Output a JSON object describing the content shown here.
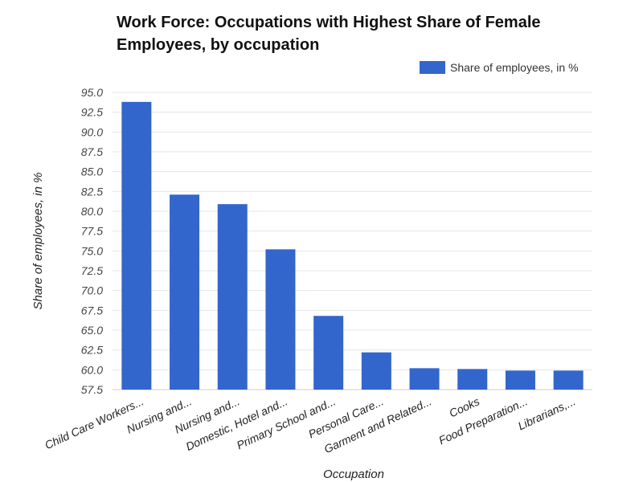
{
  "chart_data": {
    "type": "bar",
    "title": "Work Force: Occupations with Highest Share of Female Employees, by occupation",
    "xlabel": "Occupation",
    "ylabel": "Share of employees, in %",
    "legend": {
      "position": "top-right",
      "entries": [
        "Share of employees, in %"
      ]
    },
    "grid": true,
    "ylim": [
      57.5,
      95.0
    ],
    "yticks": [
      "57.5",
      "60.0",
      "62.5",
      "65.0",
      "67.5",
      "70.0",
      "72.5",
      "75.0",
      "77.5",
      "80.0",
      "82.5",
      "85.0",
      "87.5",
      "90.0",
      "92.5",
      "95.0"
    ],
    "categories": [
      "Child Care Workers...",
      "Nursing and...",
      "Nursing and...",
      "Domestic, Hotel and...",
      "Primary School and...",
      "Personal Care...",
      "Garment and Related...",
      "Cooks",
      "Food Preparation...",
      "Librarians,..."
    ],
    "series": [
      {
        "name": "Share of employees, in %",
        "values": [
          93.8,
          82.1,
          80.9,
          75.2,
          66.8,
          62.2,
          60.2,
          60.1,
          59.9,
          59.9
        ]
      }
    ],
    "colors": {
      "bar": "#3366cc",
      "grid": "#e4e4e4",
      "axis": "#cccccc"
    }
  }
}
